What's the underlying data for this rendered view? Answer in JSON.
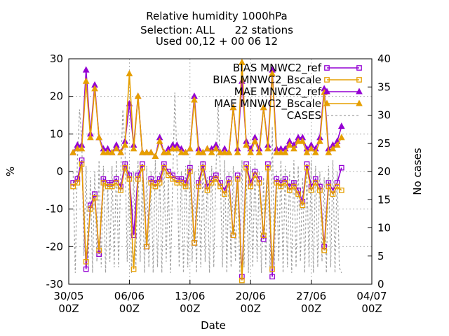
{
  "chart_data": {
    "type": "line",
    "title_lines": [
      "Relative humidity 1000hPa",
      "Selection: ALL      22 stations",
      "Used 00,12 + 00 06 12"
    ],
    "xlabel": "Date",
    "ylabel": "%",
    "y2label": "No cases",
    "xlim": [
      0,
      35
    ],
    "ylim": [
      -30,
      30
    ],
    "y2lim": [
      0,
      40
    ],
    "x_ticks": [
      {
        "x": 0,
        "line1": "30/05",
        "line2": "00Z"
      },
      {
        "x": 7,
        "line1": "06/06",
        "line2": "00Z"
      },
      {
        "x": 14,
        "line1": "13/06",
        "line2": "00Z"
      },
      {
        "x": 21,
        "line1": "20/06",
        "line2": "00Z"
      },
      {
        "x": 28,
        "line1": "27/06",
        "line2": "00Z"
      },
      {
        "x": 35,
        "line1": "04/07",
        "line2": "00Z"
      }
    ],
    "y_ticks": [
      -30,
      -20,
      -10,
      0,
      10,
      20,
      30
    ],
    "y2_ticks": [
      0,
      5,
      10,
      15,
      20,
      25,
      30,
      35,
      40
    ],
    "grid": true,
    "legend_position": "top-right",
    "series": [
      {
        "name": "BIAS MNWC2_ref",
        "axis": "y",
        "color": "#9400d3",
        "marker": "square",
        "x": [
          0.5,
          1.0,
          1.5,
          2.0,
          2.5,
          3.0,
          3.5,
          4.0,
          4.5,
          5.0,
          5.5,
          6.0,
          6.5,
          7.0,
          7.5,
          8.0,
          8.5,
          9.0,
          9.5,
          10.0,
          10.5,
          11.0,
          11.5,
          12.0,
          12.5,
          13.0,
          13.5,
          14.0,
          14.5,
          15.0,
          15.5,
          16.0,
          16.5,
          17.0,
          17.5,
          18.0,
          18.5,
          19.0,
          19.5,
          20.0,
          20.5,
          21.0,
          21.5,
          22.0,
          22.5,
          23.0,
          23.5,
          24.0,
          24.5,
          25.0,
          25.5,
          26.0,
          26.5,
          27.0,
          27.5,
          28.0,
          28.5,
          29.0,
          29.5,
          30.0,
          30.5,
          31.0,
          31.5
        ],
        "y": [
          -3,
          -2,
          3,
          -26,
          -9,
          -6,
          -22,
          -2,
          -3,
          -3,
          -2,
          -4,
          2,
          -1,
          -17,
          -1,
          2,
          -20,
          -2,
          -3,
          -2,
          2,
          0,
          -1,
          -2,
          -2,
          -3,
          1,
          -19,
          -3,
          2,
          -4,
          -2,
          -1,
          -3,
          -5,
          -2,
          -17,
          -1,
          -28,
          2,
          -3,
          0,
          -2,
          -18,
          2,
          -28,
          -2,
          -3,
          -2,
          -4,
          -3,
          -5,
          -8,
          2,
          -4,
          -2,
          -4,
          -20,
          -3,
          -5,
          -3,
          1
        ]
      },
      {
        "name": "BIAS MNWC2_Bscale",
        "axis": "y",
        "color": "#e69f00",
        "marker": "square-open",
        "x": [
          0.5,
          1.0,
          1.5,
          2.0,
          2.5,
          3.0,
          3.5,
          4.0,
          4.5,
          5.0,
          5.5,
          6.0,
          6.5,
          7.0,
          7.5,
          8.0,
          8.5,
          9.0,
          9.5,
          10.0,
          10.5,
          11.0,
          11.5,
          12.0,
          12.5,
          13.0,
          13.5,
          14.0,
          14.5,
          15.0,
          15.5,
          16.0,
          16.5,
          17.0,
          17.5,
          18.0,
          18.5,
          19.0,
          19.5,
          20.0,
          20.5,
          21.0,
          21.5,
          22.0,
          22.5,
          23.0,
          23.5,
          24.0,
          24.5,
          25.0,
          25.5,
          26.0,
          26.5,
          27.0,
          27.5,
          28.0,
          28.5,
          29.0,
          29.5,
          30.0,
          30.5,
          31.0,
          31.5
        ],
        "y": [
          -4,
          -3,
          2,
          -24,
          -10,
          -7,
          -21,
          -3,
          -4,
          -4,
          -3,
          -5,
          1,
          -2,
          -26,
          -2,
          1,
          -20,
          -3,
          -4,
          -3,
          1,
          -1,
          -2,
          -3,
          -3,
          -4,
          0,
          -19,
          -4,
          1,
          -5,
          -3,
          -2,
          -4,
          -6,
          -3,
          -17,
          -2,
          -29,
          1,
          -4,
          -1,
          -3,
          -17,
          1,
          -26,
          -3,
          -4,
          -3,
          -5,
          -4,
          -6,
          -9,
          1,
          -5,
          -3,
          -5,
          -21,
          -4,
          -6,
          -4,
          -5
        ]
      },
      {
        "name": "MAE MNWC2_ref",
        "axis": "y",
        "color": "#9400d3",
        "marker": "triangle",
        "x": [
          0.5,
          1.0,
          1.5,
          2.0,
          2.5,
          3.0,
          3.5,
          4.0,
          4.5,
          5.0,
          5.5,
          6.0,
          6.5,
          7.0,
          7.5,
          8.0,
          8.5,
          9.0,
          9.5,
          10.0,
          10.5,
          11.0,
          11.5,
          12.0,
          12.5,
          13.0,
          13.5,
          14.0,
          14.5,
          15.0,
          15.5,
          16.0,
          16.5,
          17.0,
          17.5,
          18.0,
          18.5,
          19.0,
          19.5,
          20.0,
          20.5,
          21.0,
          21.5,
          22.0,
          22.5,
          23.0,
          23.5,
          24.0,
          24.5,
          25.0,
          25.5,
          26.0,
          26.5,
          27.0,
          27.5,
          28.0,
          28.5,
          29.0,
          29.5,
          30.0,
          30.5,
          31.0,
          31.5
        ],
        "y": [
          5,
          7,
          7,
          27,
          10,
          23,
          9,
          6,
          6,
          5,
          7,
          5,
          8,
          18,
          7,
          20,
          5,
          5,
          5,
          4,
          9,
          5,
          6,
          7,
          7,
          6,
          5,
          6,
          20,
          6,
          5,
          6,
          6,
          7,
          5,
          6,
          5,
          17,
          6,
          24,
          8,
          6,
          9,
          6,
          17,
          7,
          27,
          6,
          6,
          6,
          8,
          7,
          9,
          9,
          6,
          7,
          6,
          9,
          22,
          6,
          7,
          8,
          12
        ]
      },
      {
        "name": "MAE MNWC2_Bscale",
        "axis": "y",
        "color": "#e69f00",
        "marker": "triangle-open",
        "x": [
          0.5,
          1.0,
          1.5,
          2.0,
          2.5,
          3.0,
          3.5,
          4.0,
          4.5,
          5.0,
          5.5,
          6.0,
          6.5,
          7.0,
          7.5,
          8.0,
          8.5,
          9.0,
          9.5,
          10.0,
          10.5,
          11.0,
          11.5,
          12.0,
          12.5,
          13.0,
          13.5,
          14.0,
          14.5,
          15.0,
          15.5,
          16.0,
          16.5,
          17.0,
          17.5,
          18.0,
          18.5,
          19.0,
          19.5,
          20.0,
          20.5,
          21.0,
          21.5,
          22.0,
          22.5,
          23.0,
          23.5,
          24.0,
          24.5,
          25.0,
          25.5,
          26.0,
          26.5,
          27.0,
          27.5,
          28.0,
          28.5,
          29.0,
          29.5,
          30.0,
          30.5,
          31.0,
          31.5
        ],
        "y": [
          5,
          6,
          6,
          24,
          9,
          22,
          9,
          5,
          5,
          5,
          6,
          5,
          7,
          26,
          6,
          20,
          5,
          5,
          5,
          4,
          8,
          5,
          5,
          6,
          6,
          5,
          5,
          6,
          19,
          5,
          5,
          6,
          5,
          6,
          5,
          5,
          5,
          17,
          5,
          29,
          7,
          5,
          8,
          5,
          17,
          6,
          26,
          5,
          5,
          5,
          7,
          6,
          8,
          8,
          5,
          6,
          5,
          8,
          21,
          5,
          6,
          7,
          9
        ]
      },
      {
        "name": "CASES",
        "axis": "y2",
        "color": "#a0a0a0",
        "marker": "none",
        "dashed": true,
        "x": [
          0.5,
          0.75,
          1.0,
          1.25,
          1.5,
          1.75,
          2.0,
          2.25,
          2.5,
          2.75,
          3.0,
          3.25,
          3.5,
          3.75,
          4.0,
          4.25,
          4.5,
          4.75,
          5.0,
          5.25,
          5.5,
          5.75,
          6.0,
          6.25,
          6.5,
          6.75,
          7.0,
          7.25,
          7.5,
          7.75,
          8.0,
          8.25,
          8.5,
          8.75,
          9.0,
          9.25,
          9.5,
          9.75,
          10.0,
          10.25,
          10.5,
          10.75,
          11.0,
          11.25,
          11.5,
          11.75,
          12.0,
          12.25,
          12.5,
          12.75,
          13.0,
          13.25,
          13.5,
          13.75,
          14.0,
          14.25,
          14.5,
          14.75,
          15.0,
          15.25,
          15.5,
          15.75,
          16.0,
          16.25,
          16.5,
          16.75,
          17.0,
          17.25,
          17.5,
          17.75,
          18.0,
          18.25,
          18.5,
          18.75,
          19.0,
          19.25,
          19.5,
          19.75,
          20.0,
          20.25,
          20.5,
          20.75,
          21.0,
          21.25,
          21.5,
          21.75,
          22.0,
          22.25,
          22.5,
          22.75,
          23.0,
          23.25,
          23.5,
          23.75,
          24.0,
          24.25,
          24.5,
          24.75,
          25.0,
          25.25,
          25.5,
          25.75,
          26.0,
          26.25,
          26.5,
          26.75,
          27.0,
          27.25,
          27.5,
          27.75,
          28.0,
          28.25,
          28.5,
          28.75,
          29.0,
          29.25,
          29.5,
          29.75,
          30.0,
          30.25,
          30.5,
          30.75,
          31.0,
          31.25,
          31.5
        ],
        "y": [
          20,
          2,
          22,
          31,
          26,
          5,
          21,
          3,
          19,
          2,
          20,
          4,
          22,
          3,
          21,
          2,
          18,
          4,
          21,
          3,
          22,
          3,
          20,
          31,
          24,
          4,
          21,
          2,
          20,
          3,
          22,
          4,
          19,
          2,
          21,
          3,
          20,
          2,
          22,
          3,
          20,
          2,
          21,
          4,
          19,
          2,
          18,
          34,
          22,
          3,
          20,
          2,
          21,
          3,
          22,
          4,
          20,
          2,
          21,
          3,
          22,
          4,
          19,
          2,
          21,
          3,
          20,
          32,
          20,
          3,
          22,
          2,
          20,
          3,
          21,
          4,
          19,
          2,
          22,
          3,
          20,
          2,
          21,
          3,
          22,
          4,
          20,
          2,
          19,
          3,
          21,
          2,
          28,
          3,
          20,
          4,
          22,
          2,
          21,
          3,
          20,
          2,
          22,
          3,
          21,
          4,
          19,
          2,
          20,
          3,
          22,
          2,
          21,
          3,
          20,
          4,
          19,
          2,
          21,
          3,
          22,
          2,
          20,
          3,
          2
        ]
      }
    ]
  }
}
